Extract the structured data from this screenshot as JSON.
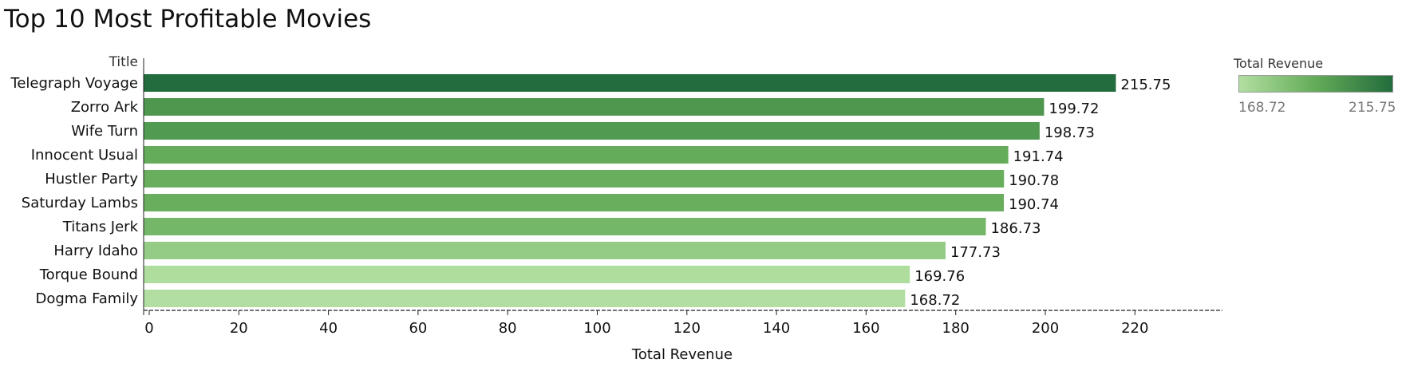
{
  "chart_data": {
    "type": "bar",
    "orientation": "horizontal",
    "title": "Top 10 Most Profitable Movies",
    "xlabel": "Total Revenue",
    "ylabel": "Title",
    "categories": [
      "Telegraph Voyage",
      "Zorro Ark",
      "Wife Turn",
      "Innocent Usual",
      "Hustler Party",
      "Saturday Lambs",
      "Titans Jerk",
      "Harry Idaho",
      "Torque Bound",
      "Dogma Family"
    ],
    "values": [
      215.75,
      199.72,
      198.73,
      191.74,
      190.78,
      190.74,
      186.73,
      177.73,
      169.76,
      168.72
    ],
    "xlim": [
      0,
      240
    ],
    "xticks": [
      0,
      20,
      40,
      60,
      80,
      100,
      120,
      140,
      160,
      180,
      200,
      220
    ],
    "grid": false,
    "legend": {
      "title": "Total Revenue",
      "min": "168.72",
      "max": "215.75",
      "placement": "top-right",
      "color_low": "#b2dfa1",
      "color_mid": "#63ab58",
      "color_high": "#236c3d"
    }
  }
}
